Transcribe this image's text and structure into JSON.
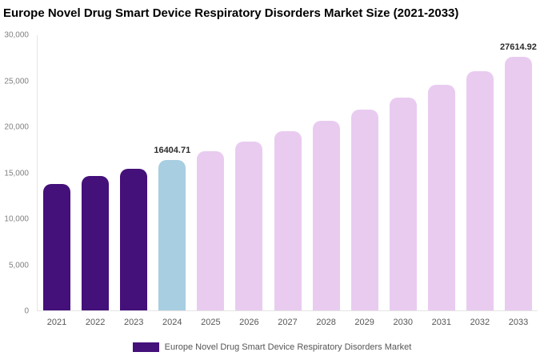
{
  "title": "Europe Novel Drug Smart Device Respiratory Disorders Market Size (2021-2033)",
  "legend": {
    "label": "Europe Novel Drug Smart Device Respiratory Disorders Market",
    "swatch_color": "#44107A"
  },
  "chart_data": {
    "type": "bar",
    "title": "Europe Novel Drug Smart Device Respiratory Disorders Market Size (2021-2033)",
    "categories": [
      "2021",
      "2022",
      "2023",
      "2024",
      "2025",
      "2026",
      "2027",
      "2028",
      "2029",
      "2030",
      "2031",
      "2032",
      "2033"
    ],
    "values": [
      13790,
      14610,
      15480,
      16404.71,
      17380,
      18420,
      19510,
      20670,
      21900,
      23210,
      24590,
      26050,
      27614.92
    ],
    "bar_colors": [
      "#44107A",
      "#44107A",
      "#44107A",
      "#A8CEE2",
      "#E9CBF0",
      "#E9CBF0",
      "#E9CBF0",
      "#E9CBF0",
      "#E9CBF0",
      "#E9CBF0",
      "#E9CBF0",
      "#E9CBF0",
      "#E9CBF0"
    ],
    "annotations": [
      {
        "index": 3,
        "text": "16404.71"
      },
      {
        "index": 12,
        "text": "27614.92"
      }
    ],
    "xlabel": "",
    "ylabel": "",
    "ylim": [
      0,
      30000
    ],
    "yticks": [
      0,
      5000,
      10000,
      15000,
      20000,
      25000,
      30000
    ],
    "ytick_labels": [
      "0",
      "5,000",
      "10,000",
      "15,000",
      "20,000",
      "25,000",
      "30,000"
    ],
    "grid": false,
    "legend_position": "bottom"
  }
}
